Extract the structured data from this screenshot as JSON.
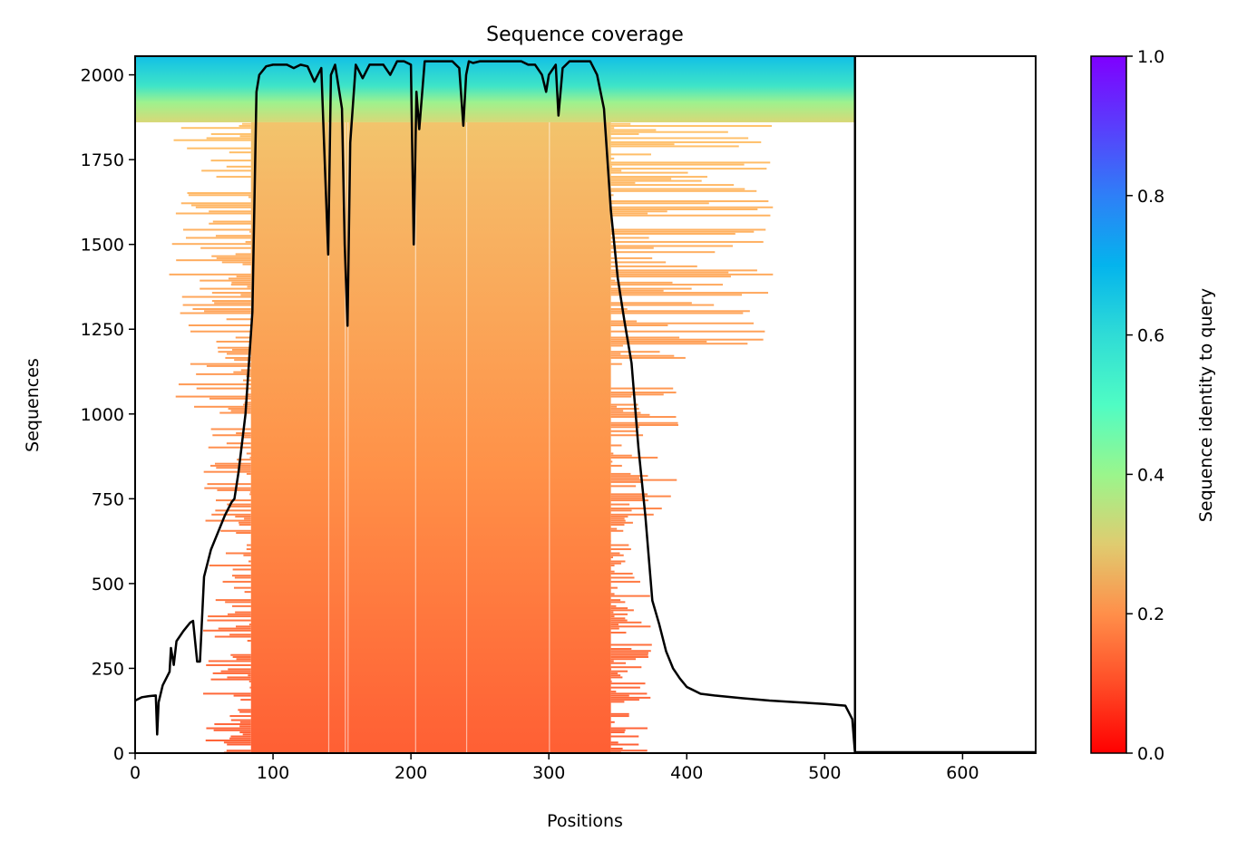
{
  "chart_data": {
    "type": "heatmap",
    "title": "Sequence coverage",
    "xlabel": "Positions",
    "ylabel": "Sequences",
    "xlim": [
      0,
      653
    ],
    "ylim": [
      0,
      2055
    ],
    "xticks": [
      0,
      100,
      200,
      300,
      400,
      500,
      600
    ],
    "yticks": [
      0,
      250,
      500,
      750,
      1000,
      1250,
      1500,
      1750,
      2000
    ],
    "query_length": 522,
    "num_sequences": 2055,
    "colorbar": {
      "label": "Sequence identity to query",
      "range": [
        0,
        1
      ],
      "ticks": [
        "0.0",
        "0.2",
        "0.4",
        "0.6",
        "0.8",
        "1.0"
      ],
      "colormap": "rainbow_r"
    },
    "coverage_line": {
      "name": "coverage",
      "color": "#000000",
      "x": [
        0,
        5,
        10,
        15,
        16,
        17,
        20,
        25,
        26,
        28,
        30,
        35,
        40,
        42,
        45,
        47,
        50,
        55,
        60,
        65,
        70,
        72,
        75,
        80,
        85,
        88,
        90,
        95,
        100,
        110,
        115,
        120,
        125,
        130,
        135,
        137,
        140,
        142,
        145,
        150,
        152,
        154,
        156,
        160,
        165,
        170,
        175,
        180,
        185,
        190,
        195,
        200,
        202,
        204,
        206,
        210,
        220,
        230,
        235,
        238,
        240,
        242,
        245,
        250,
        260,
        270,
        280,
        285,
        290,
        295,
        298,
        300,
        305,
        307,
        310,
        315,
        320,
        330,
        335,
        340,
        345,
        350,
        355,
        360,
        365,
        370,
        375,
        380,
        385,
        390,
        395,
        400,
        410,
        420,
        440,
        460,
        480,
        500,
        515,
        520,
        522
      ],
      "y": [
        155,
        165,
        168,
        170,
        55,
        150,
        200,
        240,
        310,
        260,
        330,
        360,
        385,
        390,
        270,
        270,
        520,
        600,
        650,
        700,
        740,
        750,
        830,
        1000,
        1300,
        1950,
        2000,
        2025,
        2030,
        2030,
        2020,
        2030,
        2025,
        1980,
        2020,
        1800,
        1470,
        2000,
        2030,
        1900,
        1500,
        1260,
        1800,
        2030,
        1990,
        2030,
        2030,
        2030,
        2000,
        2040,
        2040,
        2030,
        1500,
        1950,
        1840,
        2040,
        2040,
        2040,
        2020,
        1850,
        2000,
        2040,
        2035,
        2040,
        2040,
        2040,
        2040,
        2030,
        2030,
        2000,
        1950,
        2000,
        2030,
        1880,
        2020,
        2040,
        2040,
        2040,
        2000,
        1900,
        1600,
        1400,
        1270,
        1150,
        900,
        700,
        450,
        380,
        300,
        250,
        220,
        195,
        175,
        170,
        162,
        155,
        150,
        145,
        140,
        100,
        0
      ]
    }
  }
}
